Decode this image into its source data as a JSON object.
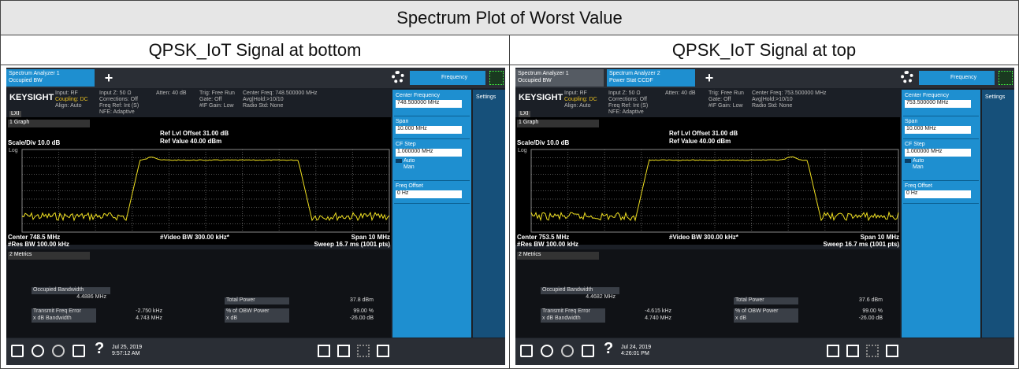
{
  "title": "Spectrum Plot of Worst Value",
  "panels": [
    {
      "heading": "QPSK_IoT Signal at bottom",
      "tabs": [
        [
          "Spectrum Analyzer 1",
          "Occupied BW"
        ]
      ],
      "header": {
        "brand": "KEYSIGHT",
        "badge": "LXI",
        "fields": [
          [
            "Input: RF",
            "Coupling: DC",
            "Align: Auto"
          ],
          [
            "Input Z: 50 Ω",
            "Corrections: Off",
            "Freq Ref: Int (S)",
            "NFE: Adaptive"
          ],
          [
            "Atten: 40 dB"
          ],
          [
            "Trig: Free Run",
            "Gate: Off",
            "#IF Gain: Low"
          ],
          [
            "Center Freq: 748.500000 MHz",
            "Avg|Hold:>10/10",
            "Radio Std: None"
          ]
        ]
      },
      "menu": "Frequency",
      "graph": {
        "menu": "1 Graph",
        "ref_offset": "Ref Lvl Offset 31.00 dB",
        "ref_value": "Ref Value 40.00 dBm",
        "scale": "Scale/Div 10.0 dB",
        "log": "Log",
        "center": "Center 748.5 MHz",
        "video_bw": "#Video BW 300.00 kHz*",
        "span": "Span 10 MHz",
        "res_bw": "#Res BW 100.00 kHz",
        "sweep": "Sweep 16.7 ms (1001 pts)"
      },
      "softkeys": {
        "settings": "Settings",
        "center_label": "Center Frequency",
        "center_value": "748.500000 MHz",
        "span_label": "Span",
        "span_value": "10.000 MHz",
        "step_label": "CF Step",
        "step_value": "1.000000 MHz",
        "auto": "Auto",
        "man": "Man",
        "offset_label": "Freq Offset",
        "offset_value": "0 Hz"
      },
      "metrics": {
        "menu": "2 Metrics",
        "obw_label": "Occupied Bandwidth",
        "obw_value": "4.4886 MHz",
        "power_label": "Total Power",
        "power_value": "37.8 dBm",
        "ferr_label": "Transmit Freq Error",
        "ferr_value": "-2.750 kHz",
        "pct_label": "% of OBW Power",
        "pct_value": "99.00 %",
        "xdb_bw_label": "x dB Bandwidth",
        "xdb_bw_value": "4.743 MHz",
        "xdb_label": "x dB",
        "xdb_value": "-26.00 dB"
      },
      "taskbar": {
        "date": "Jul 25, 2019",
        "time": "9:57:12 AM"
      }
    },
    {
      "heading": "QPSK_IoT Signal at top",
      "tabs": [
        [
          "Spectrum Analyzer 1",
          "Occupied BW"
        ],
        [
          "Spectrum Analyzer 2",
          "Power Stat CCDF"
        ]
      ],
      "header": {
        "brand": "KEYSIGHT",
        "badge": "LXI",
        "fields": [
          [
            "Input: RF",
            "Coupling: DC",
            "Align: Auto"
          ],
          [
            "Input Z: 50 Ω",
            "Corrections: Off",
            "Freq Ref: Int (S)",
            "NFE: Adaptive"
          ],
          [
            "Atten: 40 dB"
          ],
          [
            "Trig: Free Run",
            "Gate: Off",
            "#IF Gain: Low"
          ],
          [
            "Center Freq: 753.500000 MHz",
            "Avg|Hold:>10/10",
            "Radio Std: None"
          ]
        ]
      },
      "menu": "Frequency",
      "graph": {
        "menu": "1 Graph",
        "ref_offset": "Ref Lvl Offset 31.00 dB",
        "ref_value": "Ref Value 40.00 dBm",
        "scale": "Scale/Div 10.0 dB",
        "log": "Log",
        "center": "Center 753.5 MHz",
        "video_bw": "#Video BW 300.00 kHz*",
        "span": "Span 10 MHz",
        "res_bw": "#Res BW 100.00 kHz",
        "sweep": "Sweep 16.7 ms (1001 pts)"
      },
      "softkeys": {
        "settings": "Settings",
        "center_label": "Center Frequency",
        "center_value": "753.500000 MHz",
        "span_label": "Span",
        "span_value": "10.000 MHz",
        "step_label": "CF Step",
        "step_value": "1.000000 MHz",
        "auto": "Auto",
        "man": "Man",
        "offset_label": "Freq Offset",
        "offset_value": "0 Hz"
      },
      "metrics": {
        "menu": "2 Metrics",
        "obw_label": "Occupied Bandwidth",
        "obw_value": "4.4682 MHz",
        "power_label": "Total Power",
        "power_value": "37.6 dBm",
        "ferr_label": "Transmit Freq Error",
        "ferr_value": "-4.615 kHz",
        "pct_label": "% of OBW Power",
        "pct_value": "99.00 %",
        "xdb_bw_label": "x dB Bandwidth",
        "xdb_bw_value": "4.740 MHz",
        "xdb_label": "x dB",
        "xdb_value": "-26.00 dB"
      },
      "taskbar": {
        "date": "Jul 24, 2019",
        "time": "4:26:01 PM"
      }
    }
  ]
}
